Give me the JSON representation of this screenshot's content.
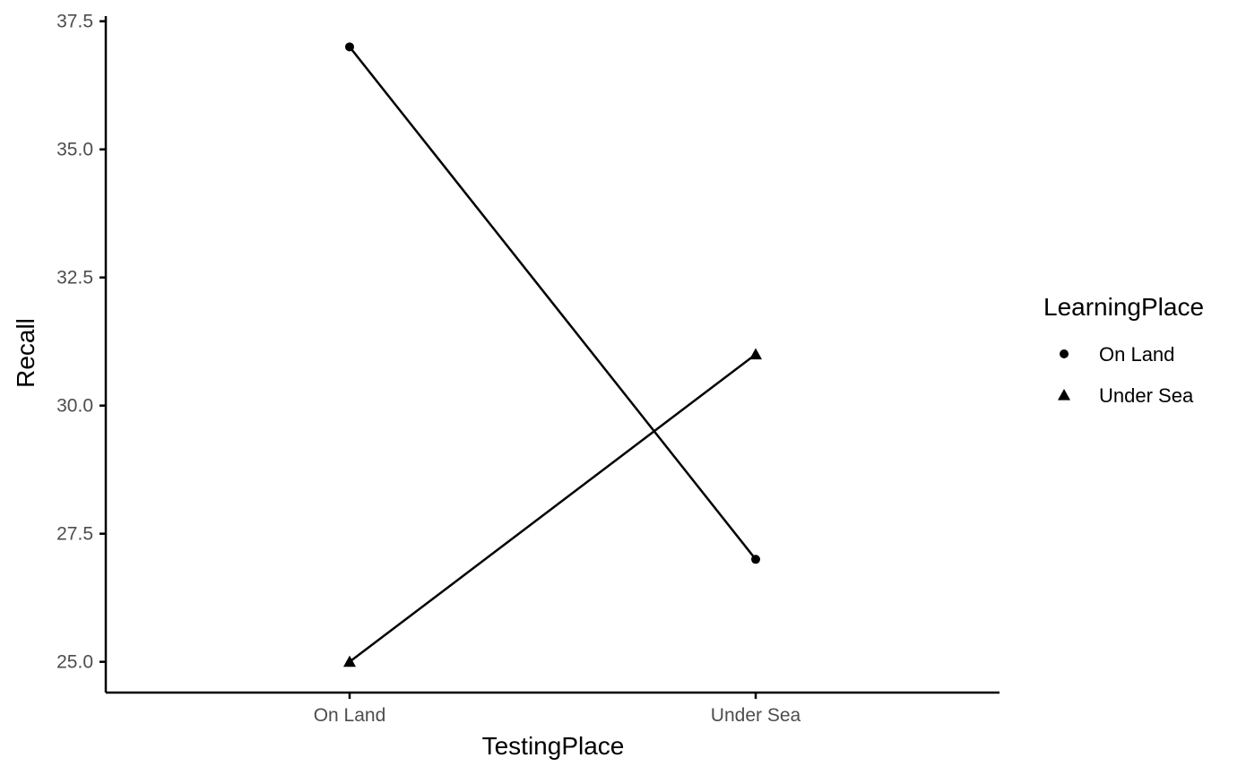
{
  "chart_data": {
    "type": "line",
    "xlabel": "TestingPlace",
    "ylabel": "Recall",
    "categories": [
      "On Land",
      "Under Sea"
    ],
    "ylim": [
      24.4,
      37.6
    ],
    "yticks": [
      25.0,
      27.5,
      30.0,
      32.5,
      35.0,
      37.5
    ],
    "ytick_labels": [
      "25.0",
      "27.5",
      "30.0",
      "32.5",
      "35.0",
      "37.5"
    ],
    "grid": false,
    "legend": {
      "title": "LearningPlace",
      "position": "right"
    },
    "series": [
      {
        "name": "On Land",
        "marker": "circle",
        "values": [
          37,
          27
        ]
      },
      {
        "name": "Under Sea",
        "marker": "triangle",
        "values": [
          25,
          31
        ]
      }
    ],
    "colors": {
      "line": "#000000",
      "tick_text": "#4d4d4d"
    }
  }
}
